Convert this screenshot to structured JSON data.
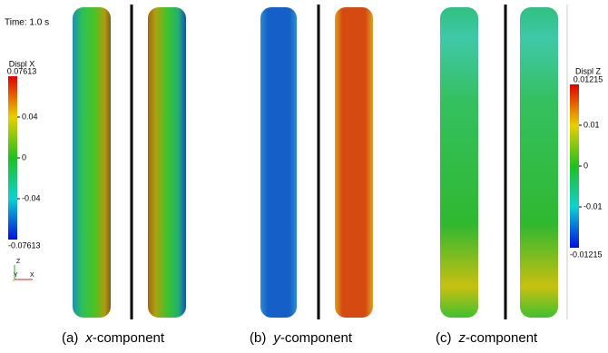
{
  "time_label": "Time: 1.0 s",
  "colorbar_left": {
    "title": "Displ X",
    "max": "0.07613",
    "ticks": [
      "0.04",
      "0",
      "-0.04"
    ],
    "min": "-0.07613"
  },
  "colorbar_right": {
    "title": "Displ Z",
    "max": "0.01215",
    "ticks": [
      "0.01",
      "0",
      "-0.01"
    ],
    "min": "-0.01215"
  },
  "axes_triad": {
    "z": "Z",
    "y": "Y",
    "x": "X"
  },
  "captions": [
    {
      "label": "(a)",
      "var": "x",
      "text": "-component"
    },
    {
      "label": "(b)",
      "var": "y",
      "text": "-component"
    },
    {
      "label": "(c)",
      "var": "z",
      "text": "-component"
    }
  ]
}
